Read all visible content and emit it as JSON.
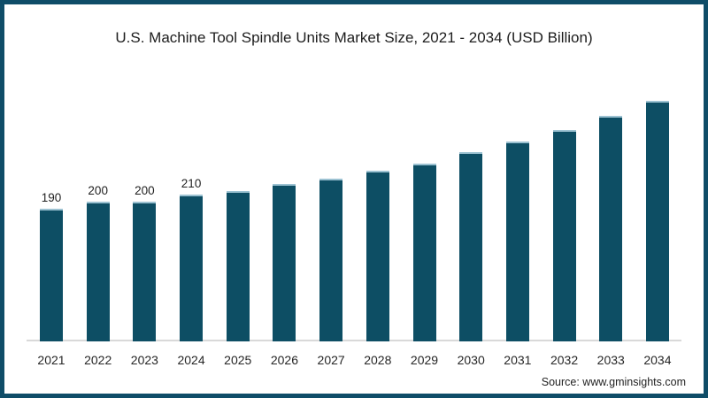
{
  "window": {
    "frame_color": "#0f4d68",
    "background": "#ffffff"
  },
  "chart_data": {
    "type": "bar",
    "title": "U.S. Machine Tool Spindle Units Market Size, 2021 - 2034 (USD Billion)",
    "categories": [
      "2021",
      "2022",
      "2023",
      "2024",
      "2025",
      "2026",
      "2027",
      "2028",
      "2029",
      "2030",
      "2031",
      "2032",
      "2033",
      "2034"
    ],
    "values": [
      190,
      200,
      200,
      210,
      216,
      225,
      233,
      244,
      255,
      271,
      286,
      303,
      323,
      345
    ],
    "bar_labels": [
      "190",
      "200",
      "200",
      "210",
      "",
      "",
      "",
      "",
      "",
      "",
      "",
      "",
      "",
      ""
    ],
    "xlabel": "",
    "ylabel": "",
    "ylim": [
      0,
      356
    ],
    "grid": false,
    "legend": false,
    "bar_color": "#0d4e64",
    "bar_top_edge_color": "#9cc2d2",
    "axis_line_color": "#d9d9d9",
    "text_color": "#1f1f1f"
  },
  "source": {
    "label": "Source: www.gminsights.com"
  }
}
